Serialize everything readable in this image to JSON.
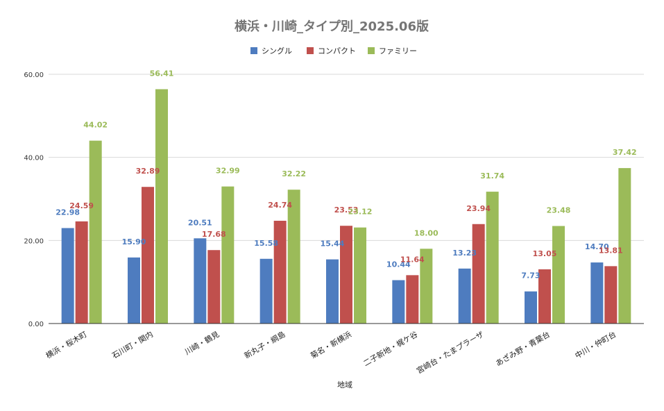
{
  "chart_data": {
    "type": "bar",
    "title": "横浜・川崎_タイプ別_2025.06版",
    "xlabel": "地域",
    "ylabel": "",
    "ylim": [
      0,
      60
    ],
    "yticks": [
      "0.00",
      "20.00",
      "40.00",
      "60.00"
    ],
    "grid": true,
    "legend_position": "top",
    "categories": [
      "横浜・桜木町",
      "石川町・関内",
      "川崎・鶴見",
      "新丸子・綱島",
      "菊名・新横浜",
      "二子新地・梶ケ谷",
      "宮崎台・たまプラーザ",
      "あざみ野・青葉台",
      "中川・仲町台"
    ],
    "series": [
      {
        "name": "シングル",
        "color": "#4e7cbf",
        "values": [
          22.98,
          15.9,
          20.51,
          15.58,
          15.44,
          10.44,
          13.23,
          7.73,
          14.7
        ],
        "labels": [
          "22.98",
          "15.90",
          "20.51",
          "15.58",
          "15.44",
          "10.44",
          "13.23",
          "7.73",
          "14.70"
        ]
      },
      {
        "name": "コンパクト",
        "color": "#c0504d",
        "values": [
          24.59,
          32.89,
          17.68,
          24.74,
          23.53,
          11.64,
          23.94,
          13.05,
          13.81
        ],
        "labels": [
          "24.59",
          "32.89",
          "17.68",
          "24.74",
          "23.53",
          "11.64",
          "23.94",
          "13.05",
          "13.81"
        ]
      },
      {
        "name": "ファミリー",
        "color": "#9bbb59",
        "values": [
          44.02,
          56.41,
          32.99,
          32.22,
          23.12,
          18.0,
          31.74,
          23.48,
          37.42
        ],
        "labels": [
          "44.02",
          "56.41",
          "32.99",
          "32.22",
          "23.12",
          "18.00",
          "31.74",
          "23.48",
          "37.42"
        ]
      }
    ]
  }
}
